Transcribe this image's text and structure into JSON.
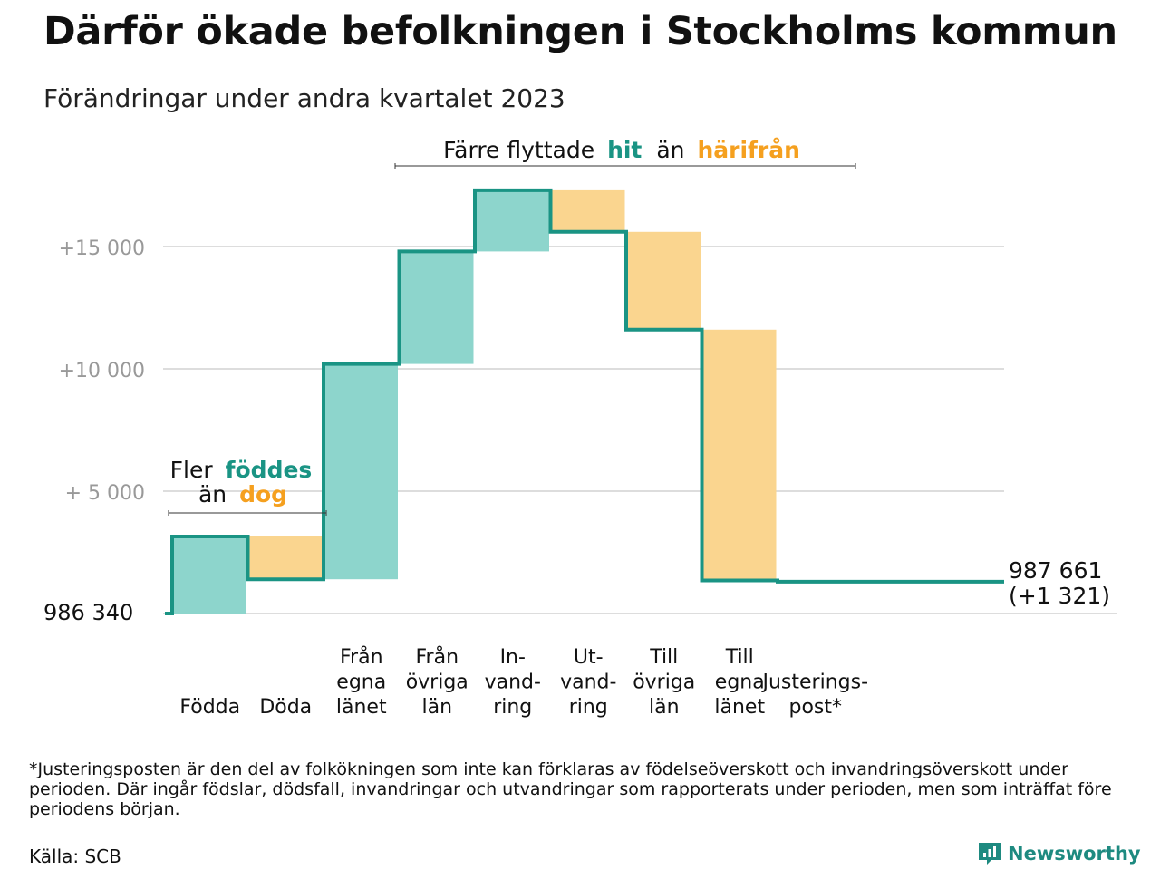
{
  "title": "Därför ökade befolkningen i Stockholms kommun",
  "subtitle": "Förändringar under andra kvartalet 2023",
  "colors": {
    "increase_fill": "#8dd5cc",
    "decrease_fill": "#fad58f",
    "line": "#1a9484",
    "accent_teal": "#1a9484",
    "accent_orange": "#f5a01f",
    "grid": "#dddddd",
    "tick_text": "#999999"
  },
  "chart_data": {
    "type": "waterfall",
    "unit": "persons",
    "base_value": 986340,
    "start_label": "986 340",
    "ylim": [
      -700,
      18500
    ],
    "y_ticks": [
      {
        "value": 5000,
        "label": "+  5  000"
      },
      {
        "value": 10000,
        "label": "+10   000"
      },
      {
        "value": 15000,
        "label": "+15   000"
      }
    ],
    "grid": true,
    "steps": [
      {
        "label_lines": [
          "Födda"
        ],
        "delta": 3150,
        "kind": "increase"
      },
      {
        "label_lines": [
          "Döda"
        ],
        "delta": -1750,
        "kind": "decrease"
      },
      {
        "label_lines": [
          "Från",
          "egna",
          "länet"
        ],
        "delta": 8800,
        "kind": "increase"
      },
      {
        "label_lines": [
          "Från",
          "övriga",
          "län"
        ],
        "delta": 4600,
        "kind": "increase"
      },
      {
        "label_lines": [
          "In-",
          "vand-",
          "ring"
        ],
        "delta": 2500,
        "kind": "increase"
      },
      {
        "label_lines": [
          "Ut-",
          "vand-",
          "ring"
        ],
        "delta": -1700,
        "kind": "decrease"
      },
      {
        "label_lines": [
          "Till",
          "övriga",
          "län"
        ],
        "delta": -4000,
        "kind": "decrease"
      },
      {
        "label_lines": [
          "Till",
          "egna",
          "länet"
        ],
        "delta": -10250,
        "kind": "decrease"
      },
      {
        "label_lines": [
          "Justerings-",
          "post*"
        ],
        "delta": -50,
        "kind": "adjustment"
      }
    ],
    "end_value_label": "987 661",
    "end_change_label": "(+1 321)",
    "annotations": [
      {
        "id": "births",
        "line1_plain": "Fler",
        "line1_accent": "föddes",
        "line2_plain": "än",
        "line2_accent": "dog"
      },
      {
        "id": "migration",
        "plain1": "Färre flyttade",
        "accent1": "hit",
        "plain2": "än",
        "accent2": "härifrån"
      }
    ]
  },
  "footnote": "*Justeringsposten är den del av folkökningen som inte kan förklaras av födelseöverskott och invandringsöverskott under perioden. Där ingår födslar, dödsfall, invandringar och utvandringar som rapporterats under perioden, men som inträffat före periodens början.",
  "source": "Källa: SCB",
  "brand": {
    "name": "Newsworthy",
    "icon": "newsworthy-logo-icon"
  }
}
